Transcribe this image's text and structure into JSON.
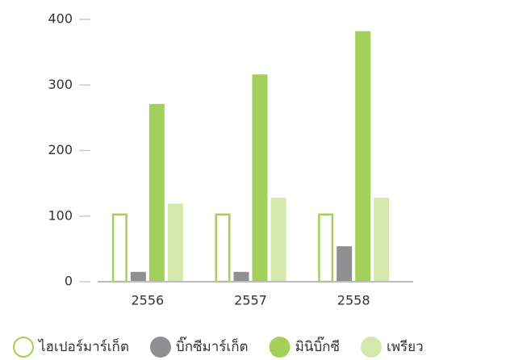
{
  "chart_data": {
    "type": "bar",
    "categories": [
      "2556",
      "2557",
      "2558"
    ],
    "series": [
      {
        "name": "ไฮเปอร์มาร์เก็ต",
        "color": "#a3cf5a",
        "style": "outline",
        "values": [
          104,
          104,
          104
        ]
      },
      {
        "name": "บิ๊กซีมาร์เก็ต",
        "color": "#8f8f92",
        "style": "solid",
        "values": [
          15,
          15,
          54
        ]
      },
      {
        "name": "มินิบิ๊กซี",
        "color": "#a3cf5a",
        "style": "solid",
        "values": [
          271,
          316,
          382
        ]
      },
      {
        "name": "เพรียว",
        "color": "#d4e8aa",
        "style": "solid",
        "values": [
          119,
          128,
          128
        ]
      }
    ],
    "ylim": [
      0,
      400
    ],
    "yticks": [
      0,
      100,
      200,
      300,
      400
    ],
    "grid": false,
    "legend": "bottom"
  }
}
